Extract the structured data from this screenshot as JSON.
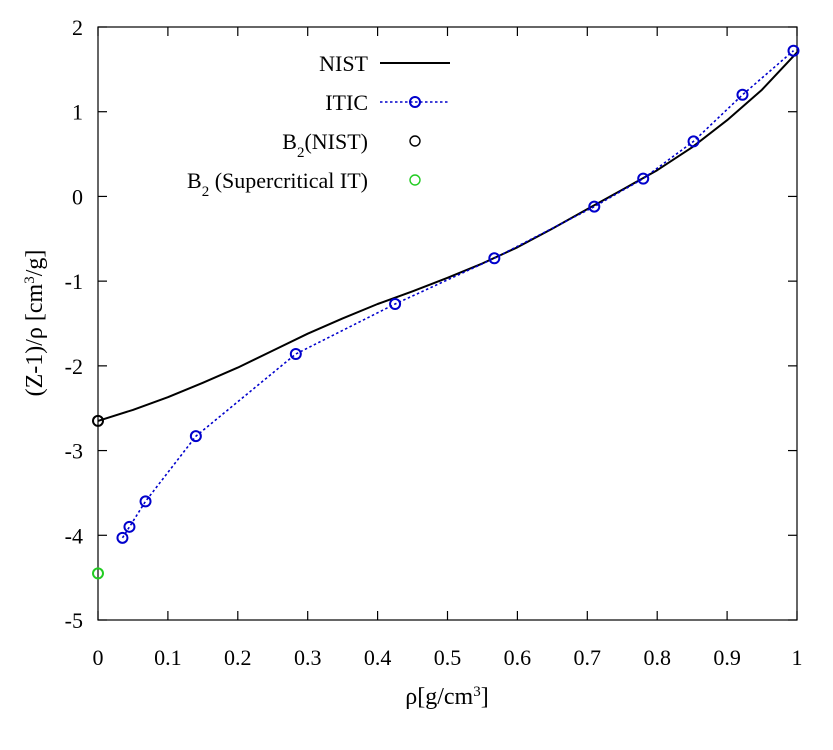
{
  "chart_data": {
    "type": "line",
    "xlabel": "ρ[g/cm3]",
    "ylabel": "(Z-1)/ρ [cm3/g]",
    "xlim": [
      0,
      1
    ],
    "ylim": [
      -5,
      2
    ],
    "x_ticks": [
      "0",
      "0.1",
      "0.2",
      "0.3",
      "0.4",
      "0.5",
      "0.6",
      "0.7",
      "0.8",
      "0.9",
      "1"
    ],
    "y_ticks": [
      "-5",
      "-4",
      "-3",
      "-2",
      "-1",
      "0",
      "1",
      "2"
    ],
    "grid": false,
    "legend_position": "top-left",
    "series": [
      {
        "name": "NIST",
        "style": "solid-line",
        "color": "#000000",
        "x": [
          0,
          0.05,
          0.1,
          0.15,
          0.2,
          0.25,
          0.3,
          0.35,
          0.4,
          0.45,
          0.5,
          0.55,
          0.6,
          0.65,
          0.7,
          0.75,
          0.8,
          0.85,
          0.9,
          0.95,
          1.0
        ],
        "y": [
          -2.65,
          -2.52,
          -2.37,
          -2.2,
          -2.02,
          -1.82,
          -1.62,
          -1.44,
          -1.27,
          -1.12,
          -0.96,
          -0.79,
          -0.6,
          -0.38,
          -0.15,
          0.08,
          0.31,
          0.58,
          0.9,
          1.26,
          1.7
        ]
      },
      {
        "name": "ITIC",
        "style": "dotted-line-circles",
        "color": "#0000cc",
        "x": [
          0.035,
          0.045,
          0.068,
          0.14,
          0.283,
          0.425,
          0.567,
          0.71,
          0.78,
          0.852,
          0.922,
          0.995
        ],
        "y": [
          -4.03,
          -3.9,
          -3.6,
          -2.83,
          -1.86,
          -1.27,
          -0.73,
          -0.12,
          0.21,
          0.65,
          1.2,
          1.72
        ]
      },
      {
        "name": "B2(NIST)",
        "style": "marker-only",
        "color": "#000000",
        "x": [
          0
        ],
        "y": [
          -2.65
        ]
      },
      {
        "name": "B2 (Supercritical IT)",
        "style": "marker-only",
        "color": "#22cc22",
        "x": [
          0
        ],
        "y": [
          -4.45
        ]
      }
    ]
  }
}
